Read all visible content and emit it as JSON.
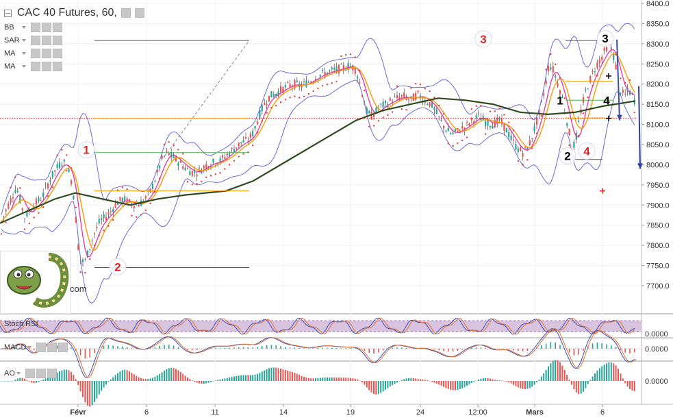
{
  "chart_data": {
    "type": "candlestick",
    "title": "CAC 40 Futures, 60,",
    "indicators": [
      "BB",
      "SAR",
      "MA",
      "MA"
    ],
    "price_axis": {
      "ticks": [
        8400,
        8350,
        8300,
        8250,
        8200,
        8150,
        8100,
        8050,
        8000,
        7950,
        7900,
        7850,
        7800,
        7750,
        7700
      ],
      "tick_labels": [
        "8400.0",
        "8350.0",
        "8300.0",
        "8250.0",
        "8200.0",
        "8150.0",
        "8100.0",
        "8050.0",
        "8000.0",
        "7950.0",
        "7900.0",
        "7850.0",
        "7800.0",
        "7750.0",
        "7700.0"
      ],
      "ylim": [
        7660,
        8405
      ]
    },
    "x_axis": {
      "tick_labels": [
        "Févr",
        "6",
        "11",
        "14",
        "19",
        "24",
        "12:00",
        "Mars",
        "6"
      ]
    },
    "price_path": [
      [
        0,
        7850
      ],
      [
        12,
        7900
      ],
      [
        24,
        7945
      ],
      [
        36,
        7870
      ],
      [
        50,
        7900
      ],
      [
        62,
        7920
      ],
      [
        72,
        7960
      ],
      [
        82,
        7990
      ],
      [
        92,
        8010
      ],
      [
        100,
        7985
      ],
      [
        106,
        7950
      ],
      [
        110,
        7880
      ],
      [
        114,
        7800
      ],
      [
        118,
        7760
      ],
      [
        124,
        7760
      ],
      [
        130,
        7790
      ],
      [
        138,
        7830
      ],
      [
        146,
        7860
      ],
      [
        154,
        7870
      ],
      [
        162,
        7885
      ],
      [
        170,
        7905
      ],
      [
        180,
        7915
      ],
      [
        190,
        7905
      ],
      [
        200,
        7900
      ],
      [
        210,
        7910
      ],
      [
        220,
        7935
      ],
      [
        228,
        7970
      ],
      [
        236,
        8010
      ],
      [
        244,
        8030
      ],
      [
        252,
        8020
      ],
      [
        262,
        8005
      ],
      [
        272,
        7990
      ],
      [
        282,
        7980
      ],
      [
        292,
        7985
      ],
      [
        302,
        8000
      ],
      [
        312,
        8005
      ],
      [
        322,
        8010
      ],
      [
        332,
        8025
      ],
      [
        342,
        8040
      ],
      [
        352,
        8055
      ],
      [
        362,
        8060
      ],
      [
        370,
        8080
      ],
      [
        378,
        8120
      ],
      [
        386,
        8150
      ],
      [
        394,
        8170
      ],
      [
        402,
        8175
      ],
      [
        410,
        8185
      ],
      [
        420,
        8195
      ],
      [
        430,
        8200
      ],
      [
        440,
        8195
      ],
      [
        450,
        8205
      ],
      [
        460,
        8215
      ],
      [
        470,
        8225
      ],
      [
        480,
        8230
      ],
      [
        490,
        8235
      ],
      [
        500,
        8240
      ],
      [
        510,
        8245
      ],
      [
        518,
        8240
      ],
      [
        524,
        8215
      ],
      [
        530,
        8170
      ],
      [
        536,
        8130
      ],
      [
        542,
        8120
      ],
      [
        548,
        8130
      ],
      [
        556,
        8145
      ],
      [
        564,
        8150
      ],
      [
        572,
        8160
      ],
      [
        580,
        8165
      ],
      [
        590,
        8170
      ],
      [
        600,
        8160
      ],
      [
        610,
        8175
      ],
      [
        620,
        8160
      ],
      [
        630,
        8150
      ],
      [
        640,
        8120
      ],
      [
        650,
        8090
      ],
      [
        660,
        8075
      ],
      [
        670,
        8085
      ],
      [
        680,
        8095
      ],
      [
        690,
        8110
      ],
      [
        700,
        8120
      ],
      [
        710,
        8105
      ],
      [
        720,
        8100
      ],
      [
        730,
        8110
      ],
      [
        740,
        8085
      ],
      [
        748,
        8060
      ],
      [
        756,
        8040
      ],
      [
        764,
        8030
      ],
      [
        772,
        8045
      ],
      [
        780,
        8085
      ],
      [
        788,
        8130
      ],
      [
        796,
        8190
      ],
      [
        802,
        8250
      ],
      [
        808,
        8235
      ],
      [
        814,
        8205
      ],
      [
        820,
        8175
      ],
      [
        826,
        8125
      ],
      [
        832,
        8075
      ],
      [
        836,
        8035
      ],
      [
        842,
        8070
      ],
      [
        848,
        8130
      ],
      [
        856,
        8185
      ],
      [
        864,
        8220
      ],
      [
        872,
        8250
      ],
      [
        880,
        8270
      ],
      [
        888,
        8300
      ],
      [
        894,
        8285
      ],
      [
        900,
        8240
      ],
      [
        906,
        8185
      ],
      [
        912,
        8170
      ],
      [
        918,
        8185
      ],
      [
        924,
        8170
      ],
      [
        928,
        8155
      ]
    ],
    "ma_long": [
      [
        0,
        7855
      ],
      [
        40,
        7885
      ],
      [
        80,
        7915
      ],
      [
        110,
        7930
      ],
      [
        150,
        7915
      ],
      [
        190,
        7900
      ],
      [
        230,
        7915
      ],
      [
        270,
        7925
      ],
      [
        330,
        7935
      ],
      [
        370,
        7960
      ],
      [
        420,
        8010
      ],
      [
        470,
        8060
      ],
      [
        520,
        8110
      ],
      [
        560,
        8135
      ],
      [
        600,
        8150
      ],
      [
        640,
        8165
      ],
      [
        680,
        8160
      ],
      [
        720,
        8150
      ],
      [
        760,
        8130
      ],
      [
        800,
        8125
      ],
      [
        840,
        8130
      ],
      [
        880,
        8145
      ],
      [
        928,
        8158
      ]
    ],
    "reference_lines": [
      {
        "price": 8115,
        "x1": 0,
        "x2": 930,
        "style": "dotted",
        "color": "#cc0000"
      },
      {
        "price": 8308,
        "x1": 138,
        "x2": 364,
        "style": "solid",
        "color": "#555555"
      },
      {
        "price": 8115,
        "x1": 138,
        "x2": 364,
        "style": "solid",
        "color": "#ff9800"
      },
      {
        "price": 8030,
        "x1": 138,
        "x2": 364,
        "style": "solid",
        "color": "#4caf50"
      },
      {
        "price": 7935,
        "x1": 138,
        "x2": 364,
        "style": "solid",
        "color": "#ff9800"
      },
      {
        "price": 7745,
        "x1": 138,
        "x2": 364,
        "style": "solid",
        "color": "#555555"
      },
      {
        "price": 8308,
        "x1": 826,
        "x2": 895,
        "style": "solid",
        "color": "#555555"
      },
      {
        "price": 8207,
        "x1": 826,
        "x2": 895,
        "style": "solid",
        "color": "#ff9800"
      },
      {
        "price": 8160,
        "x1": 826,
        "x2": 895,
        "style": "solid",
        "color": "#4caf50"
      },
      {
        "price": 8116,
        "x1": 826,
        "x2": 895,
        "style": "solid",
        "color": "#ff9800"
      },
      {
        "price": 8013,
        "x1": 826,
        "x2": 880,
        "style": "solid",
        "color": "#555555"
      }
    ],
    "trend_lines": [
      {
        "p1": [
          240,
          8020
        ],
        "p2": [
          364,
          8308
        ],
        "style": "dashed",
        "color": "#888888"
      },
      {
        "p1": [
          901,
          8310
        ],
        "p2": [
          905,
          8110
        ],
        "style": "solid",
        "color": "#3a4da8"
      },
      {
        "p1": [
          933,
          8195
        ],
        "p2": [
          935,
          7990
        ],
        "style": "solid",
        "color": "#2a3d98"
      }
    ],
    "wave_labels": [
      {
        "text": "1",
        "x": 126,
        "price": 8037,
        "color": "#e02020",
        "circle": true
      },
      {
        "text": "2",
        "x": 172,
        "price": 7747,
        "color": "#e02020",
        "circle": true
      },
      {
        "text": "3",
        "x": 706,
        "price": 8312,
        "color": "#e02020",
        "circle": true
      },
      {
        "text": "4",
        "x": 857,
        "price": 8034,
        "color": "#e02020",
        "circle": true
      },
      {
        "text": "3",
        "x": 884,
        "price": 8313,
        "color": "#000000",
        "circle": true
      },
      {
        "text": "1",
        "x": 818,
        "price": 8160,
        "color": "#000000",
        "circle": false
      },
      {
        "text": "4",
        "x": 886,
        "price": 8160,
        "color": "#000000",
        "circle": false
      },
      {
        "text": "2",
        "x": 829,
        "price": 8022,
        "color": "#000000",
        "circle": true
      }
    ],
    "cross_markers": [
      {
        "x": 880,
        "price": 7935,
        "color": "#e02020"
      },
      {
        "x": 889,
        "price": 8115,
        "color": "#000000"
      },
      {
        "x": 889,
        "price": 8220,
        "color": "#000000"
      }
    ],
    "subpanels": [
      {
        "name": "Stoch RSI",
        "value_label": "0.0000"
      },
      {
        "name": "MACD",
        "value_label": "0.0000"
      },
      {
        "name": "AO",
        "value_label": "0.0000"
      }
    ],
    "logo_text": "com",
    "colors": {
      "up": "#26a69a",
      "down": "#ef5350",
      "bb": "#6a6ad8",
      "ma_long": "#2e4a1e",
      "ma_fast": "#ff9800",
      "sar": "#e53935"
    }
  }
}
